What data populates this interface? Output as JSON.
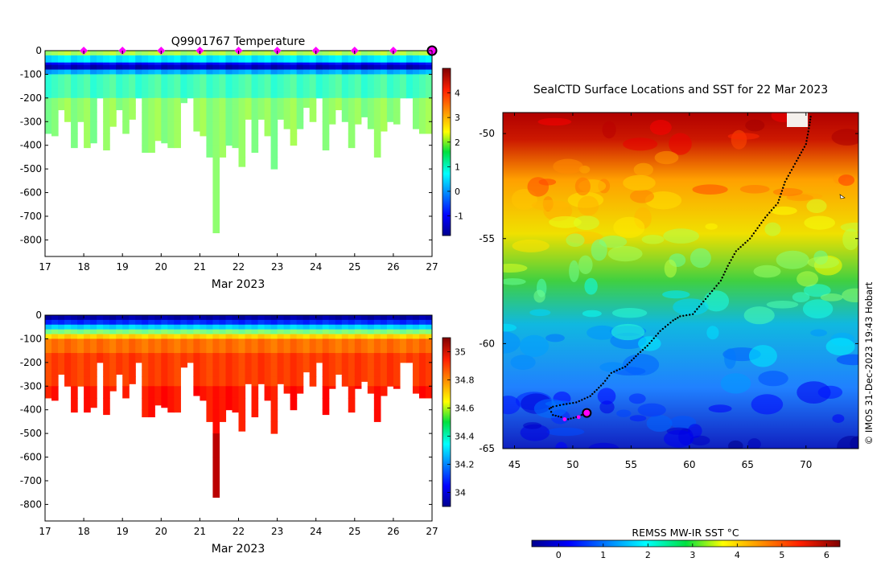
{
  "top_panel": {
    "title": "Q9901767  Temperature",
    "xlabel": "Mar 2023",
    "x_ticks": [
      "17",
      "18",
      "19",
      "20",
      "21",
      "22",
      "23",
      "24",
      "25",
      "26",
      "27"
    ],
    "y_ticks": [
      "0",
      "-100",
      "-200",
      "-300",
      "-400",
      "-500",
      "-600",
      "-700",
      "-800"
    ],
    "colorbar_ticks": [
      "4",
      "3",
      "2",
      "1",
      "0",
      "-1"
    ]
  },
  "bottom_panel": {
    "xlabel": "Mar 2023",
    "x_ticks": [
      "17",
      "18",
      "19",
      "20",
      "21",
      "22",
      "23",
      "24",
      "25",
      "26",
      "27"
    ],
    "y_ticks": [
      "0",
      "-100",
      "-200",
      "-300",
      "-400",
      "-500",
      "-600",
      "-700",
      "-800"
    ],
    "colorbar_ticks": [
      "35",
      "34.8",
      "34.6",
      "34.4",
      "34.2",
      "34"
    ]
  },
  "map_panel": {
    "title": "SealCTD Surface Locations and SST for 22 Mar 2023",
    "x_ticks": [
      "45",
      "50",
      "55",
      "60",
      "65",
      "70"
    ],
    "y_ticks": [
      "-50",
      "-55",
      "-60",
      "-65"
    ],
    "colorbar_label": "REMSS MW-IR SST °C",
    "colorbar_ticks": [
      "0",
      "1",
      "2",
      "3",
      "4",
      "5",
      "6"
    ]
  },
  "credit": "© IMOS 31-Dec-2023 19:43 Hobart",
  "chart_data": [
    {
      "type": "heatmap",
      "title": "Q9901767  Temperature",
      "xlabel": "Mar 2023",
      "ylabel": "",
      "xlim": [
        17,
        27
      ],
      "ylim": [
        -870,
        0
      ],
      "colorbar": {
        "min": -1.8,
        "max": 5,
        "label": ""
      },
      "profile_markers_day": [
        18,
        19,
        20,
        21,
        22,
        23,
        24,
        25,
        26
      ],
      "latest_profile_day": 27,
      "profile_max_depth": [
        350,
        360,
        250,
        300,
        410,
        300,
        410,
        390,
        200,
        420,
        320,
        250,
        350,
        290,
        200,
        430,
        430,
        380,
        390,
        410,
        410,
        220,
        200,
        340,
        360,
        450,
        770,
        450,
        400,
        410,
        490,
        290,
        430,
        290,
        360,
        500,
        290,
        330,
        400,
        330,
        240,
        300,
        200,
        420,
        310,
        250,
        300,
        410,
        310,
        280,
        330,
        450,
        340,
        300,
        310,
        200,
        200,
        330,
        350,
        350
      ],
      "structure": "surface ~2 C, cold subsurface layer ~-1 C at 50-90 m, ~1-2 C below to profile bottom"
    },
    {
      "type": "heatmap",
      "title": "",
      "xlabel": "Mar 2023",
      "ylabel": "",
      "xlim": [
        17,
        27
      ],
      "ylim": [
        -870,
        0
      ],
      "colorbar": {
        "min": 33.9,
        "max": 35.1,
        "label": ""
      },
      "profile_max_depth": [
        350,
        360,
        250,
        300,
        410,
        300,
        410,
        390,
        200,
        420,
        320,
        250,
        350,
        290,
        200,
        430,
        430,
        380,
        390,
        410,
        410,
        220,
        200,
        340,
        360,
        450,
        770,
        450,
        400,
        410,
        490,
        290,
        430,
        290,
        360,
        500,
        290,
        330,
        400,
        330,
        240,
        300,
        200,
        420,
        310,
        250,
        300,
        410,
        310,
        280,
        330,
        450,
        340,
        300,
        310,
        200,
        200,
        330,
        350,
        350
      ],
      "structure": "fresh ~34.0 near surface increasing to ~34.9 below 200 m, ~35.0 at depth"
    },
    {
      "type": "heatmap",
      "title": "SealCTD Surface Locations and SST for 22 Mar 2023",
      "xlabel": "",
      "ylabel": "",
      "xlim": [
        44,
        74.5
      ],
      "ylim": [
        -65,
        -49
      ],
      "colorbar": {
        "min": -0.6,
        "max": 6.3,
        "label": "REMSS MW-IR SST °C"
      },
      "sst_bands": [
        {
          "lat": -49.5,
          "sst": 6.0
        },
        {
          "lat": -51,
          "sst": 5.0
        },
        {
          "lat": -53,
          "sst": 4.2
        },
        {
          "lat": -55,
          "sst": 3.6
        },
        {
          "lat": -57,
          "sst": 2.8
        },
        {
          "lat": -59.5,
          "sst": 1.6
        },
        {
          "lat": -62,
          "sst": 0.9
        },
        {
          "lat": -64.5,
          "sst": 0.1
        }
      ],
      "track": {
        "name": "seal track",
        "lon": [
          70.4,
          70.3,
          70.0,
          69.2,
          68.2,
          67.6,
          66.5,
          65.2,
          64.0,
          63.3,
          62.7,
          61.2,
          60.3,
          59.2,
          58.6,
          57.5,
          56.4,
          55.6,
          54.5,
          53.3,
          52.6,
          51.5,
          50.3,
          49.2,
          48.3,
          48.0,
          48.3,
          49.0,
          49.6,
          50.3,
          51.2
        ],
        "lat": [
          -49.2,
          -49.6,
          -50.5,
          -51.3,
          -52.3,
          -53.3,
          -54.0,
          -55.0,
          -55.6,
          -56.3,
          -57.0,
          -58.0,
          -58.6,
          -58.7,
          -58.9,
          -59.4,
          -60.1,
          -60.5,
          -61.1,
          -61.4,
          -61.9,
          -62.5,
          -62.8,
          -62.9,
          -63.0,
          -63.1,
          -63.4,
          -63.5,
          -63.6,
          -63.5,
          -63.3
        ]
      },
      "latest_position": {
        "lon": 51.2,
        "lat": -63.3
      },
      "highlighted_positions": [
        {
          "lon": 49.3,
          "lat": -63.6
        },
        {
          "lon": 50.5,
          "lat": -63.5
        }
      ]
    }
  ]
}
